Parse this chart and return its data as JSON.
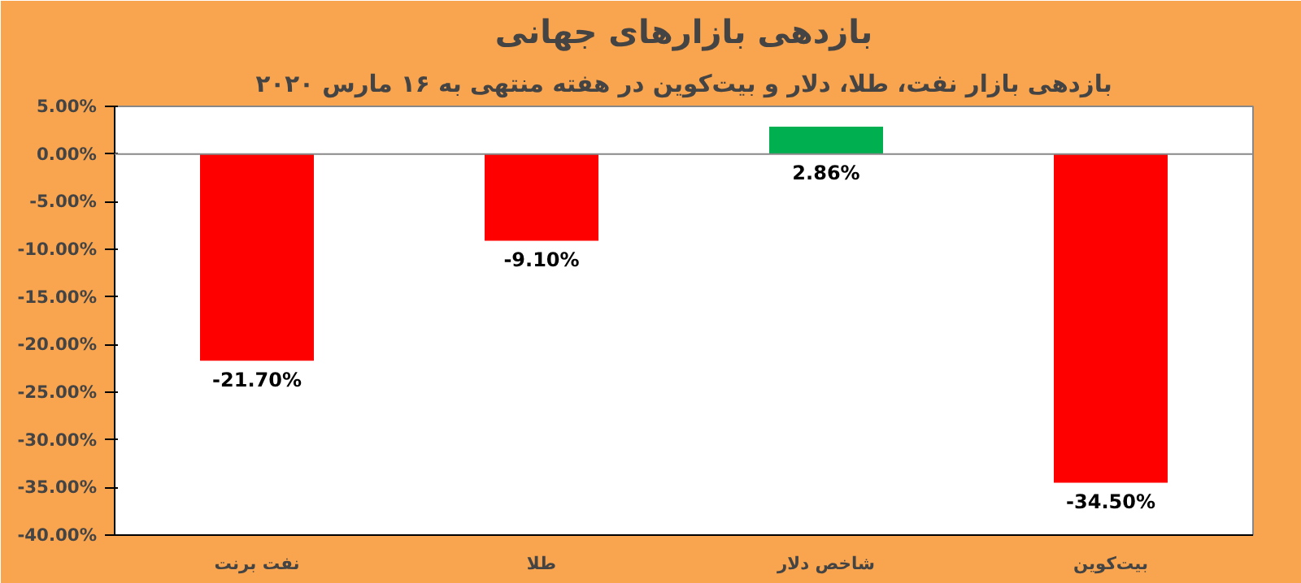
{
  "chart_data": {
    "type": "bar",
    "title": "بازدهی بازارهای جهانی",
    "subtitle": "بازدهی بازار نفت، طلا، دلار و بیت‌کوین در هفته منتهی به ۱۶ مارس ۲۰۲۰",
    "categories": [
      "نفت برنت",
      "طلا",
      "شاخص دلار",
      "بیت‌کوین"
    ],
    "values": [
      -21.7,
      -9.1,
      2.86,
      -34.5
    ],
    "colors": [
      "#ff0000",
      "#ff0000",
      "#00b050",
      "#ff0000"
    ],
    "value_labels": [
      "-21.70%",
      "-9.10%",
      "2.86%",
      "-34.50%"
    ],
    "ylim": [
      -40,
      5
    ],
    "yticks": [
      {
        "value": 5,
        "label": "5.00%"
      },
      {
        "value": 0,
        "label": "0.00%"
      },
      {
        "value": -5,
        "label": "-5.00%"
      },
      {
        "value": -10,
        "label": "-10.00%"
      },
      {
        "value": -15,
        "label": "-15.00%"
      },
      {
        "value": -20,
        "label": "-20.00%"
      },
      {
        "value": -25,
        "label": "-25.00%"
      },
      {
        "value": -30,
        "label": "-30.00%"
      },
      {
        "value": -35,
        "label": "-35.00%"
      },
      {
        "value": -40,
        "label": "-40.00%"
      }
    ],
    "ref_lines": [
      {
        "axis": "y",
        "value": 0,
        "color": "#888888"
      }
    ],
    "grid": false
  }
}
